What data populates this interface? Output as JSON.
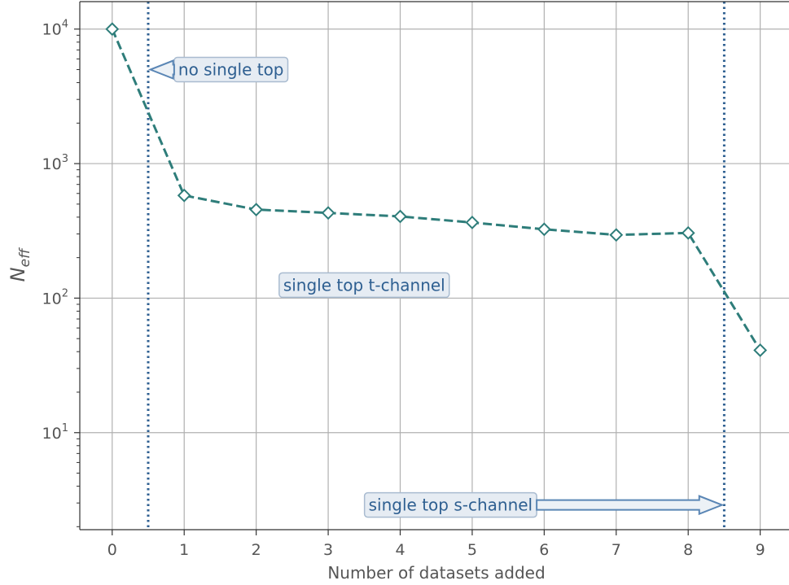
{
  "chart_data": {
    "type": "line",
    "title": "",
    "xlabel": "Number of datasets added",
    "ylabel_main": "N",
    "ylabel_sub": "eff",
    "yscale": "log",
    "xlim": [
      -0.45,
      9.4
    ],
    "ylim": [
      1.9,
      16000
    ],
    "grid": true,
    "x": [
      0,
      1,
      2,
      3,
      4,
      5,
      6,
      7,
      8,
      9
    ],
    "values": [
      10000,
      580,
      455,
      430,
      405,
      365,
      325,
      295,
      305,
      41
    ],
    "x_ticks": [
      {
        "value": 0,
        "label": "0"
      },
      {
        "value": 1,
        "label": "1"
      },
      {
        "value": 2,
        "label": "2"
      },
      {
        "value": 3,
        "label": "3"
      },
      {
        "value": 4,
        "label": "4"
      },
      {
        "value": 5,
        "label": "5"
      },
      {
        "value": 6,
        "label": "6"
      },
      {
        "value": 7,
        "label": "7"
      },
      {
        "value": 8,
        "label": "8"
      },
      {
        "value": 9,
        "label": "9"
      }
    ],
    "y_ticks": [
      {
        "value": 10,
        "base": "10",
        "exp": "1"
      },
      {
        "value": 100,
        "base": "10",
        "exp": "2"
      },
      {
        "value": 1000,
        "base": "10",
        "exp": "3"
      },
      {
        "value": 10000,
        "base": "10",
        "exp": "4"
      }
    ],
    "vlines": [
      0.5,
      8.5
    ],
    "annotations": [
      {
        "text": "no single top",
        "x": 1.65,
        "y": 5000,
        "arrow_to_x": 0.53
      },
      {
        "text": "single top t-channel",
        "x": 3.5,
        "y": 125,
        "arrow_to_x": null
      },
      {
        "text": "single top s-channel",
        "x": 4.7,
        "y": 2.9,
        "arrow_to_x": 8.47
      }
    ],
    "colors": {
      "series": "#2e7d7a",
      "vline": "#2e5f91",
      "annotation_text": "#2e5f91",
      "annotation_box": "#e6ecf3",
      "annotation_box_edge": "#a9bbd0",
      "arrow_fill": "#ecf1f6",
      "arrow_edge": "#5a86b5",
      "grid": "#b0b0b0",
      "axis": "#333333",
      "text": "#555555"
    }
  }
}
